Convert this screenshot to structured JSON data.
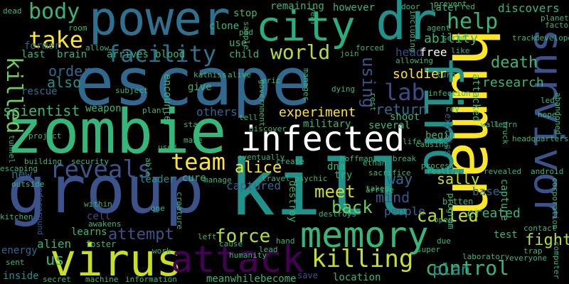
{
  "colors": {
    "background": "#000000",
    "palette_note": "viridis",
    "yellow": "#c8e020",
    "lime": "#90d743",
    "green": "#35b779",
    "teal": "#21918c",
    "blue": "#31688e",
    "indigo": "#443983",
    "purple": "#440154"
  },
  "words": [
    {
      "text": "escape"
    },
    {
      "text": "zombie"
    },
    {
      "text": "group"
    },
    {
      "text": "kill"
    },
    {
      "text": "human"
    },
    {
      "text": "find"
    },
    {
      "text": "power"
    },
    {
      "text": "city"
    },
    {
      "text": "dr"
    },
    {
      "text": "survivor"
    },
    {
      "text": "virus"
    },
    {
      "text": "memory"
    },
    {
      "text": "attack"
    },
    {
      "text": "infected"
    },
    {
      "text": "reveals"
    },
    {
      "text": "facility"
    },
    {
      "text": "take"
    },
    {
      "text": "body"
    },
    {
      "text": "team"
    },
    {
      "text": "killing"
    },
    {
      "text": "control"
    },
    {
      "text": "world"
    },
    {
      "text": "lab"
    },
    {
      "text": "help"
    },
    {
      "text": "killed"
    },
    {
      "text": "using"
    },
    {
      "text": "meet"
    },
    {
      "text": "force"
    },
    {
      "text": "back"
    },
    {
      "text": "alice"
    },
    {
      "text": "called"
    },
    {
      "text": "fight"
    },
    {
      "text": "attempt"
    },
    {
      "text": "death"
    },
    {
      "text": "experiment"
    },
    {
      "text": "return"
    },
    {
      "text": "order"
    },
    {
      "text": "also"
    },
    {
      "text": "scientist"
    },
    {
      "text": "soldier"
    },
    {
      "text": "research"
    },
    {
      "text": "mind"
    },
    {
      "text": "way"
    },
    {
      "text": "sally"
    },
    {
      "text": "created"
    },
    {
      "text": "plan"
    },
    {
      "text": "us"
    },
    {
      "text": "others"
    },
    {
      "text": "weapon"
    },
    {
      "text": "rescue"
    },
    {
      "text": "captured"
    },
    {
      "text": "people"
    },
    {
      "text": "discovers"
    },
    {
      "text": "ability"
    },
    {
      "text": "head"
    },
    {
      "text": "free"
    },
    {
      "text": "attacked"
    },
    {
      "text": "capture"
    },
    {
      "text": "explains"
    },
    {
      "text": "several"
    },
    {
      "text": "military"
    },
    {
      "text": "shoot"
    },
    {
      "text": "begin"
    },
    {
      "text": "cure"
    },
    {
      "text": "new"
    },
    {
      "text": "alien"
    },
    {
      "text": "learns"
    },
    {
      "text": "cell"
    },
    {
      "text": "energy"
    },
    {
      "text": "inside"
    },
    {
      "text": "leader"
    },
    {
      "text": "base"
    },
    {
      "text": "test"
    },
    {
      "text": "encounter"
    },
    {
      "text": "give"
    },
    {
      "text": "last"
    },
    {
      "text": "brain"
    },
    {
      "text": "arrives"
    },
    {
      "text": "blood"
    },
    {
      "text": "clone"
    },
    {
      "text": "use"
    },
    {
      "text": "child"
    },
    {
      "text": "stop"
    },
    {
      "text": "remaining"
    },
    {
      "text": "however"
    },
    {
      "text": "later"
    },
    {
      "text": "former"
    },
    {
      "text": "destroy"
    },
    {
      "text": "meanwhile"
    },
    {
      "text": "become"
    },
    {
      "text": "location"
    },
    {
      "text": "dna"
    },
    {
      "text": "try"
    },
    {
      "text": "hoffman"
    },
    {
      "text": "program"
    },
    {
      "text": "bitten"
    },
    {
      "text": "save"
    },
    {
      "text": "foster"
    },
    {
      "text": "awakens"
    },
    {
      "text": "within"
    },
    {
      "text": "underground"
    },
    {
      "text": "project"
    },
    {
      "text": "building"
    },
    {
      "text": "security"
    },
    {
      "text": "secret"
    },
    {
      "text": "machine"
    },
    {
      "text": "information"
    },
    {
      "text": "work"
    },
    {
      "text": "cause"
    },
    {
      "text": "humanity"
    },
    {
      "text": "lead"
    },
    {
      "text": "left"
    },
    {
      "text": "hand"
    },
    {
      "text": "taken"
    },
    {
      "text": "sacrifice"
    },
    {
      "text": "ethan"
    },
    {
      "text": "psychic"
    },
    {
      "text": "travel"
    },
    {
      "text": "create"
    },
    {
      "text": "eventually"
    },
    {
      "text": "discover"
    },
    {
      "text": "star"
    },
    {
      "text": "make"
    },
    {
      "text": "used"
    },
    {
      "text": "plant"
    },
    {
      "text": "subject"
    },
    {
      "text": "katniss"
    },
    {
      "text": "alive"
    },
    {
      "text": "eric"
    },
    {
      "text": "tell"
    },
    {
      "text": "government"
    },
    {
      "text": "manages"
    },
    {
      "text": "dying"
    },
    {
      "text": "rest"
    },
    {
      "text": "infection"
    },
    {
      "text": "rey"
    },
    {
      "text": "turn"
    },
    {
      "text": "allowing"
    },
    {
      "text": "join"
    },
    {
      "text": "sample"
    },
    {
      "text": "forced"
    },
    {
      "text": "agent"
    },
    {
      "text": "serum"
    },
    {
      "text": "track"
    },
    {
      "text": "prevent"
    },
    {
      "text": "door"
    },
    {
      "text": "year"
    },
    {
      "text": "pod"
    },
    {
      "text": "room"
    },
    {
      "text": "allow"
    },
    {
      "text": "including"
    },
    {
      "text": "red"
    },
    {
      "text": "like"
    },
    {
      "text": "planet"
    },
    {
      "text": "factory"
    },
    {
      "text": "developed"
    },
    {
      "text": "led"
    },
    {
      "text": "hope"
    },
    {
      "text": "abandoned"
    },
    {
      "text": "wall"
    },
    {
      "text": "learn"
    },
    {
      "text": "truck"
    },
    {
      "text": "headquarters"
    },
    {
      "text": "life"
    },
    {
      "text": "causing"
    },
    {
      "text": "break"
    },
    {
      "text": "process"
    },
    {
      "text": "realizes"
    },
    {
      "text": "revealed"
    },
    {
      "text": "android"
    },
    {
      "text": "arrive"
    },
    {
      "text": "destroys"
    },
    {
      "text": "open"
    },
    {
      "text": "contact"
    },
    {
      "text": "trap"
    },
    {
      "text": "super"
    },
    {
      "text": "laboratory"
    },
    {
      "text": "everyone"
    },
    {
      "text": "due"
    },
    {
      "text": "computer"
    },
    {
      "text": "corporation"
    },
    {
      "text": "manage"
    },
    {
      "text": "able"
    },
    {
      "text": "creature"
    },
    {
      "text": "one"
    },
    {
      "text": "outside"
    },
    {
      "text": "escaping"
    },
    {
      "text": "sent"
    },
    {
      "text": "tunnel"
    },
    {
      "text": "kitchen"
    },
    {
      "text": "dead"
    }
  ]
}
